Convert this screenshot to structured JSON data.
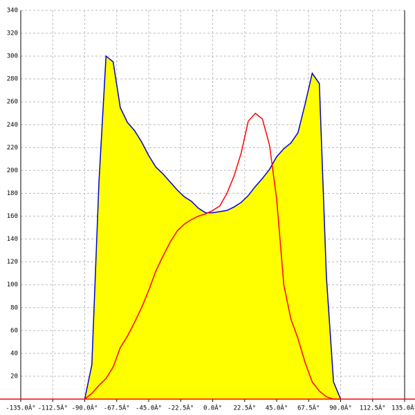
{
  "chart_data": {
    "type": "line",
    "x": [
      -90,
      -85,
      -80,
      -75,
      -70,
      -65,
      -60,
      -55,
      -50,
      -45,
      -40,
      -35,
      -30,
      -25,
      -20,
      -15,
      -10,
      -5,
      0,
      5,
      10,
      15,
      20,
      25,
      30,
      35,
      40,
      45,
      50,
      55,
      60,
      65,
      70,
      75,
      80,
      85,
      90
    ],
    "series": [
      {
        "name": "blue",
        "color": "#0000cc",
        "fill": "#ffff00",
        "values": [
          0,
          30,
          190,
          300,
          295,
          255,
          242,
          235,
          225,
          213,
          203,
          197,
          190,
          183,
          177,
          173,
          167,
          163,
          163,
          164,
          165,
          168,
          172,
          178,
          186,
          193,
          201,
          212,
          219,
          224,
          233,
          258,
          285,
          276,
          107,
          15,
          0
        ]
      },
      {
        "name": "red",
        "color": "#ff0000",
        "values": [
          0,
          5,
          12,
          18,
          28,
          45,
          55,
          67,
          80,
          95,
          112,
          125,
          137,
          147,
          153,
          157,
          160,
          162,
          165,
          169,
          180,
          195,
          215,
          243,
          250,
          245,
          222,
          175,
          100,
          70,
          53,
          32,
          15,
          7,
          2,
          0,
          0
        ]
      }
    ],
    "xlim": [
      -135,
      135
    ],
    "ylim": [
      0,
      340
    ],
    "xticks": [
      {
        "value": -135,
        "label": "-135.0Â°"
      },
      {
        "value": -112.5,
        "label": "-112.5Â°"
      },
      {
        "value": -90,
        "label": "-90.0Â°"
      },
      {
        "value": -67.5,
        "label": "-67.5Â°"
      },
      {
        "value": -45,
        "label": "-45.0Â°"
      },
      {
        "value": -22.5,
        "label": "-22.5Â°"
      },
      {
        "value": 0,
        "label": "0.0Â°"
      },
      {
        "value": 22.5,
        "label": "22.5Â°"
      },
      {
        "value": 45,
        "label": "45.0Â°"
      },
      {
        "value": 67.5,
        "label": "67.5Â°"
      },
      {
        "value": 90,
        "label": "90.0Â°"
      },
      {
        "value": 112.5,
        "label": "112.5Â°"
      },
      {
        "value": 135,
        "label": "135.0Â°"
      }
    ],
    "yticks": [
      20,
      40,
      60,
      80,
      100,
      120,
      140,
      160,
      180,
      200,
      220,
      240,
      260,
      280,
      300,
      320,
      340
    ],
    "grid": true
  }
}
